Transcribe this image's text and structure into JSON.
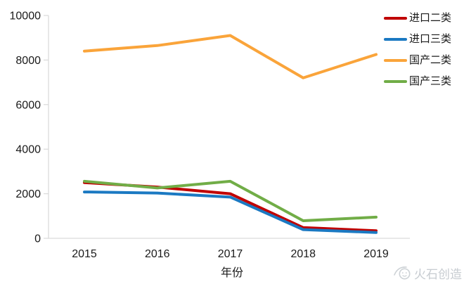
{
  "chart_data": {
    "type": "line",
    "x": [
      "2015",
      "2016",
      "2017",
      "2018",
      "2019"
    ],
    "series": [
      {
        "name": "进口二类",
        "color": "#c00000",
        "values": [
          2500,
          2300,
          2000,
          480,
          340
        ]
      },
      {
        "name": "进口三类",
        "color": "#1b79c2",
        "values": [
          2080,
          2030,
          1850,
          390,
          260
        ]
      },
      {
        "name": "国产二类",
        "color": "#faa43a",
        "values": [
          8400,
          8650,
          9100,
          7200,
          8250
        ]
      },
      {
        "name": "国产三类",
        "color": "#71ad47",
        "values": [
          2560,
          2260,
          2560,
          790,
          950
        ]
      }
    ],
    "title": "",
    "xlabel": "年份",
    "ylabel": "",
    "ylim": [
      0,
      10000
    ],
    "yticks": [
      0,
      2000,
      4000,
      6000,
      8000,
      10000
    ],
    "grid": false,
    "legend_position": "top-right",
    "line_width": 4
  },
  "watermark": {
    "text": "火石创造"
  },
  "colors": {
    "axis": "#d9d9d9",
    "tick_label": "#1a1a1a",
    "watermark": "#c7ccd1"
  }
}
